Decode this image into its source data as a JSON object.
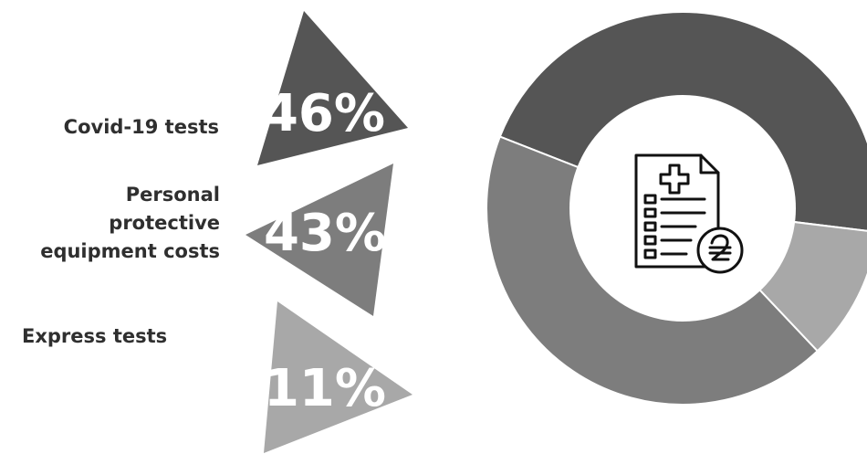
{
  "chart_data": {
    "type": "pie",
    "categories": [
      "Covid-19 tests",
      "Personal protective equipment costs",
      "Express tests"
    ],
    "values": [
      46,
      43,
      11
    ],
    "value_labels": [
      "46%",
      "43%",
      "11%"
    ],
    "colors": [
      "#555555",
      "#7d7d7d",
      "#a8a8a8"
    ]
  },
  "labels": {
    "covid": "Covid-19 tests",
    "ppe": [
      "Personal",
      "protective",
      "equipment costs"
    ],
    "express": "Express tests"
  },
  "center_icon": "medical-bill-hryvnia-icon"
}
